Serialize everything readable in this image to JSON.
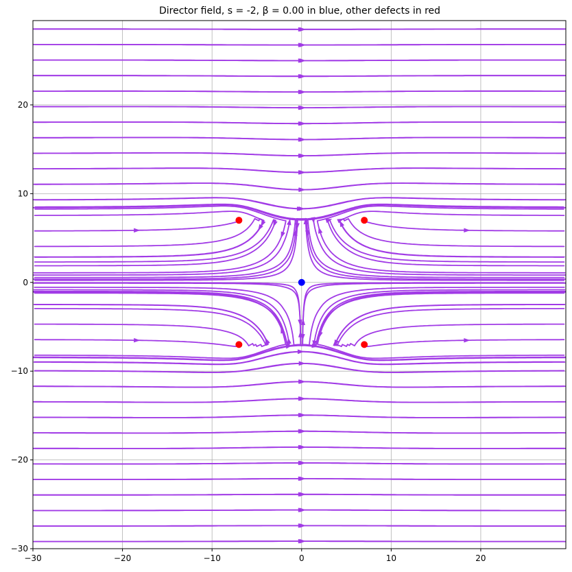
{
  "chart_data": {
    "type": "streamplot",
    "title": "Director field, s = -2, β = 0.00 in blue, other defects in red",
    "xlabel": "",
    "ylabel": "",
    "xlim": [
      -30,
      29.5
    ],
    "ylim": [
      -30,
      29.5
    ],
    "x_ticks": [
      -30,
      -20,
      -10,
      0,
      10,
      20
    ],
    "y_ticks": [
      -30,
      -20,
      -10,
      0,
      10,
      20
    ],
    "x_tick_labels": [
      "−30",
      "−20",
      "−10",
      "0",
      "10",
      "20"
    ],
    "y_tick_labels": [
      "−30",
      "−20",
      "−10",
      "0",
      "10",
      "20"
    ],
    "grid": true,
    "stream_color": "#a13be6",
    "central_defect": {
      "x": 0,
      "y": 0,
      "color": "#0000ff",
      "charge": -2,
      "beta": 0.0
    },
    "other_defects": [
      {
        "x": 7,
        "y": 7,
        "color": "#ff0000"
      },
      {
        "x": -7,
        "y": 7,
        "color": "#ff0000"
      },
      {
        "x": -7,
        "y": -7,
        "color": "#ff0000"
      },
      {
        "x": 7,
        "y": -7,
        "color": "#ff0000"
      }
    ]
  }
}
